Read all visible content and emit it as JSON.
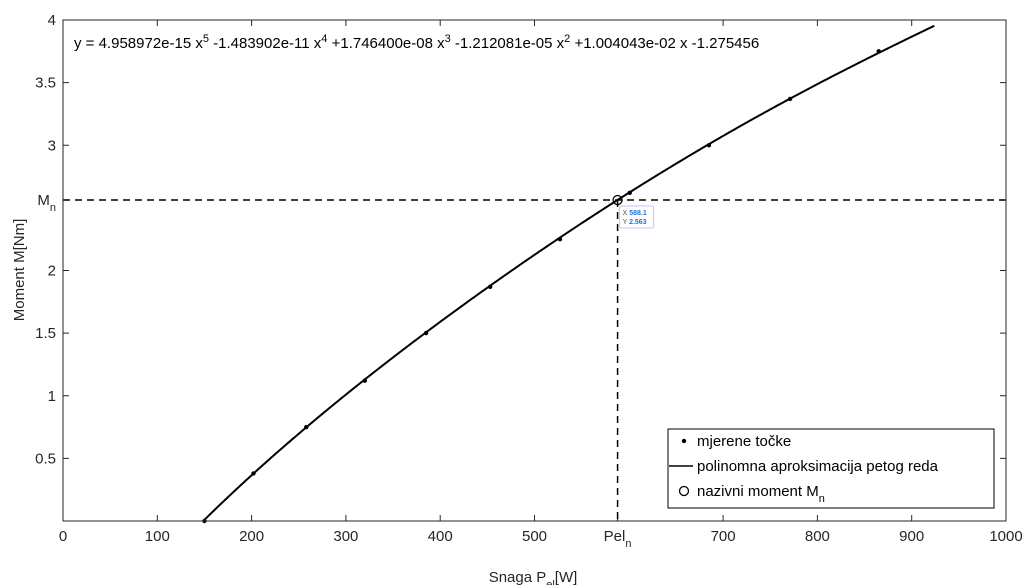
{
  "chart_data": {
    "type": "line",
    "xlabel": "Snaga P",
    "xlabel_sub": "el",
    "xlabel_unit": "[W]",
    "ylabel": "Moment M[Nm]",
    "xlim": [
      0,
      1000
    ],
    "ylim": [
      0,
      4
    ],
    "x_ticks": [
      0,
      100,
      200,
      300,
      400,
      500,
      700,
      800,
      900,
      1000
    ],
    "x_tick_labels": [
      "0",
      "100",
      "200",
      "300",
      "400",
      "500",
      "700",
      "800",
      "900",
      "1000"
    ],
    "y_ticks": [
      0.5,
      1,
      1.5,
      2,
      3,
      3.5,
      4
    ],
    "y_tick_labels": [
      "0.5",
      "1",
      "1.5",
      "2",
      "3",
      "3.5",
      "4"
    ],
    "custom_x_label": {
      "x": 588.1,
      "text": "Pel",
      "sub": "n"
    },
    "custom_y_label": {
      "y": 2.563,
      "text": "M",
      "sub": "n"
    },
    "equation": {
      "prefix": "y = 4.958972e-15 x",
      "exp1": "5",
      "t2": " -1.483902e-11 x",
      "exp2": "4",
      "t3": " +1.746400e-08 x",
      "exp3": "3",
      "t4": " -1.212081e-05 x",
      "exp4": "2",
      "t5": " +1.004043e-02 x -1.275456"
    },
    "coefficients": [
      4.958972e-15,
      -1.483902e-11,
      1.7464e-08,
      -1.212081e-05,
      0.01004043,
      -1.275456
    ],
    "fit_x_range": [
      150,
      925
    ],
    "measured_points": {
      "x": [
        150,
        202,
        258,
        320,
        385,
        453,
        527,
        601,
        685,
        771,
        865
      ],
      "y": [
        0.0,
        0.38,
        0.75,
        1.12,
        1.5,
        1.87,
        2.25,
        2.62,
        3.0,
        3.37,
        3.75
      ]
    },
    "rated_point": {
      "x": 588.1,
      "y": 2.563
    },
    "datatip": {
      "x_label": "X",
      "x_value": "588.1",
      "y_label": "Y",
      "y_value": "2.563"
    },
    "legend": {
      "placement": "bottom-right",
      "items": [
        {
          "label": "mjerene točke",
          "marker": "dot"
        },
        {
          "label": "polinomna aproksimacija petog reda",
          "marker": "line"
        },
        {
          "label": "nazivni moment M",
          "sub": "n",
          "marker": "circle"
        }
      ]
    },
    "grid": false,
    "colors": {
      "line": "#000000",
      "datatip": "#1a73e8",
      "axes": "#262626"
    }
  }
}
